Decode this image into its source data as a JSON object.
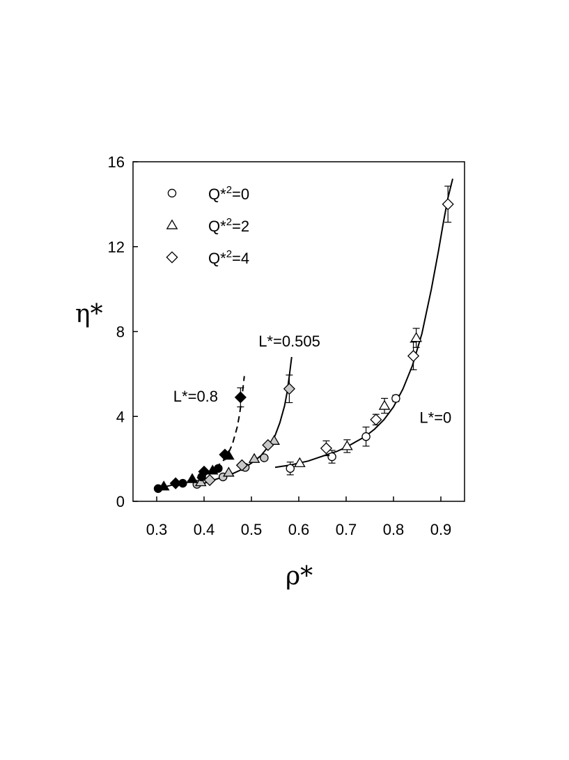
{
  "chart_data": {
    "type": "scatter",
    "xlabel": "ρ*",
    "ylabel": "η*",
    "xlim": [
      0.25,
      0.95
    ],
    "ylim": [
      0,
      16
    ],
    "xticks": [
      "0.3",
      "0.4",
      "0.5",
      "0.6",
      "0.7",
      "0.8",
      "0.9"
    ],
    "yticks": [
      "0",
      "4",
      "8",
      "12",
      "16"
    ],
    "grid": false,
    "legend_position": "top-left",
    "legend": [
      {
        "marker": "circle",
        "label": "Q*2=0",
        "base": "Q*",
        "sup": "2",
        "rest": "=0"
      },
      {
        "marker": "triangle",
        "label": "Q*2=2",
        "base": "Q*",
        "sup": "2",
        "rest": "=2"
      },
      {
        "marker": "diamond",
        "label": "Q*2=4",
        "base": "Q*",
        "sup": "2",
        "rest": "=4"
      }
    ],
    "fill_colors": {
      "L0": "#ffffff",
      "L0505": "#c8c8c8",
      "L08": "#000000"
    },
    "annotations": [
      {
        "text": "L*=0.8",
        "x": 0.335,
        "y": 4.7
      },
      {
        "text": "L*=0.505",
        "x": 0.515,
        "y": 7.3
      },
      {
        "text": "L*=0",
        "x": 0.855,
        "y": 3.7
      }
    ],
    "series": [
      {
        "group": "L0",
        "fill": "#ffffff",
        "curve": {
          "style": "solid",
          "x": [
            0.55,
            0.58,
            0.6,
            0.62,
            0.64,
            0.66,
            0.68,
            0.7,
            0.72,
            0.74,
            0.76,
            0.78,
            0.8,
            0.82,
            0.84,
            0.86,
            0.88,
            0.895,
            0.905,
            0.915,
            0.925
          ],
          "y": [
            1.6,
            1.7,
            1.8,
            1.9,
            2.05,
            2.2,
            2.35,
            2.55,
            2.8,
            3.05,
            3.4,
            3.85,
            4.45,
            5.3,
            6.4,
            7.9,
            10.0,
            11.8,
            13.1,
            14.3,
            15.2
          ]
        },
        "points": [
          {
            "marker": "circle",
            "x": 0.582,
            "y": 1.55,
            "err": 0.3
          },
          {
            "marker": "circle",
            "x": 0.67,
            "y": 2.1,
            "err": 0.3
          },
          {
            "marker": "circle",
            "x": 0.742,
            "y": 3.05,
            "err": 0.45
          },
          {
            "marker": "circle",
            "x": 0.805,
            "y": 4.85,
            "err": 0.15
          },
          {
            "marker": "triangle",
            "x": 0.602,
            "y": 1.8,
            "err": 0
          },
          {
            "marker": "triangle",
            "x": 0.702,
            "y": 2.6,
            "err": 0.3
          },
          {
            "marker": "triangle",
            "x": 0.781,
            "y": 4.5,
            "err": 0.35
          },
          {
            "marker": "triangle",
            "x": 0.848,
            "y": 7.7,
            "err": 0.45
          },
          {
            "marker": "diamond",
            "x": 0.658,
            "y": 2.5,
            "err": 0.35
          },
          {
            "marker": "diamond",
            "x": 0.763,
            "y": 3.85,
            "err": 0.25
          },
          {
            "marker": "diamond",
            "x": 0.842,
            "y": 6.85,
            "err": 0.65
          },
          {
            "marker": "diamond",
            "x": 0.915,
            "y": 14.0,
            "err": 0.85
          }
        ]
      },
      {
        "group": "L0505",
        "fill": "#c8c8c8",
        "curve": {
          "style": "solid",
          "x": [
            0.38,
            0.4,
            0.42,
            0.44,
            0.46,
            0.48,
            0.5,
            0.52,
            0.54,
            0.55,
            0.56,
            0.57,
            0.575,
            0.58,
            0.585
          ],
          "y": [
            0.75,
            0.85,
            1.0,
            1.15,
            1.3,
            1.5,
            1.8,
            2.15,
            2.7,
            3.1,
            3.7,
            4.5,
            5.1,
            5.9,
            6.8
          ]
        },
        "points": [
          {
            "marker": "circle",
            "x": 0.385,
            "y": 0.8,
            "err": 0
          },
          {
            "marker": "circle",
            "x": 0.44,
            "y": 1.15,
            "err": 0
          },
          {
            "marker": "circle",
            "x": 0.487,
            "y": 1.6,
            "err": 0
          },
          {
            "marker": "circle",
            "x": 0.527,
            "y": 2.05,
            "err": 0
          },
          {
            "marker": "triangle",
            "x": 0.393,
            "y": 0.9,
            "err": 0
          },
          {
            "marker": "triangle",
            "x": 0.452,
            "y": 1.35,
            "err": 0
          },
          {
            "marker": "triangle",
            "x": 0.506,
            "y": 2.0,
            "err": 0
          },
          {
            "marker": "triangle",
            "x": 0.548,
            "y": 2.85,
            "err": 0
          },
          {
            "marker": "diamond",
            "x": 0.412,
            "y": 1.0,
            "err": 0
          },
          {
            "marker": "diamond",
            "x": 0.48,
            "y": 1.7,
            "err": 0
          },
          {
            "marker": "diamond",
            "x": 0.535,
            "y": 2.65,
            "err": 0
          },
          {
            "marker": "diamond",
            "x": 0.58,
            "y": 5.3,
            "err": 0.65
          }
        ]
      },
      {
        "group": "L08",
        "fill": "#000000",
        "curve": {
          "style": "dashed",
          "x": [
            0.3,
            0.32,
            0.34,
            0.36,
            0.38,
            0.4,
            0.42,
            0.44,
            0.45,
            0.46,
            0.47,
            0.475,
            0.48,
            0.485
          ],
          "y": [
            0.6,
            0.7,
            0.8,
            0.9,
            1.05,
            1.25,
            1.5,
            1.9,
            2.2,
            2.7,
            3.5,
            4.1,
            4.9,
            5.9
          ]
        },
        "points": [
          {
            "marker": "circle",
            "x": 0.303,
            "y": 0.6,
            "err": 0
          },
          {
            "marker": "circle",
            "x": 0.355,
            "y": 0.85,
            "err": 0
          },
          {
            "marker": "circle",
            "x": 0.395,
            "y": 1.15,
            "err": 0
          },
          {
            "marker": "circle",
            "x": 0.43,
            "y": 1.55,
            "err": 0
          },
          {
            "marker": "triangle",
            "x": 0.315,
            "y": 0.7,
            "err": 0
          },
          {
            "marker": "triangle",
            "x": 0.375,
            "y": 1.05,
            "err": 0
          },
          {
            "marker": "triangle",
            "x": 0.418,
            "y": 1.45,
            "err": 0
          },
          {
            "marker": "triangle",
            "x": 0.452,
            "y": 2.15,
            "err": 0
          },
          {
            "marker": "diamond",
            "x": 0.34,
            "y": 0.85,
            "err": 0
          },
          {
            "marker": "diamond",
            "x": 0.4,
            "y": 1.4,
            "err": 0
          },
          {
            "marker": "diamond",
            "x": 0.444,
            "y": 2.2,
            "err": 0
          },
          {
            "marker": "diamond",
            "x": 0.477,
            "y": 4.9,
            "err": 0.45
          }
        ]
      }
    ]
  }
}
